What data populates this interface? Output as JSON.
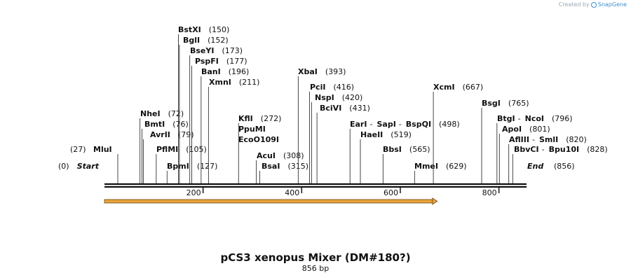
{
  "credit": {
    "prefix": "Created by",
    "brand": "SnapGene",
    "logo_icon": "snapgene-logo-icon"
  },
  "map": {
    "title": "pCS3 xenopus Mixer (DM#180?)",
    "length_label": "856 bp",
    "length": 856,
    "start_label": "Start",
    "start_position": "(0)",
    "end_label": "End",
    "end_position": "(856)",
    "axis_ticks": [
      200,
      400,
      600,
      800
    ],
    "axis_tick_labels": [
      "200",
      "400",
      "600",
      "800"
    ],
    "feature_arrow": {
      "start": 0,
      "end": 675,
      "color": "#e8a33a"
    },
    "site_groups": [
      {
        "sites": [
          {
            "name": "MluI",
            "pos": "(27)"
          }
        ],
        "bp": 27,
        "label_left": true
      },
      {
        "sites": [
          {
            "name": "NheI",
            "pos": "(72)"
          }
        ],
        "bp": 72
      },
      {
        "sites": [
          {
            "name": "BmtI",
            "pos": "(76)"
          }
        ],
        "bp": 76
      },
      {
        "sites": [
          {
            "name": "AvrII",
            "pos": "(79)"
          }
        ],
        "bp": 79
      },
      {
        "sites": [
          {
            "name": "PflMI",
            "pos": "(105)"
          }
        ],
        "bp": 105
      },
      {
        "sites": [
          {
            "name": "BpmI",
            "pos": "(127)"
          }
        ],
        "bp": 127
      },
      {
        "sites": [
          {
            "name": "BstXI",
            "pos": "(150)"
          }
        ],
        "bp": 150
      },
      {
        "sites": [
          {
            "name": "BglI",
            "pos": "(152)"
          }
        ],
        "bp": 152
      },
      {
        "sites": [
          {
            "name": "BseYI",
            "pos": "(173)"
          }
        ],
        "bp": 173
      },
      {
        "sites": [
          {
            "name": "PspFI",
            "pos": "(177)"
          }
        ],
        "bp": 177
      },
      {
        "sites": [
          {
            "name": "BanI",
            "pos": "(196)"
          }
        ],
        "bp": 196
      },
      {
        "sites": [
          {
            "name": "XmnI",
            "pos": "(211)"
          }
        ],
        "bp": 211
      },
      {
        "sites": [
          {
            "name": "KflI",
            "pos": "(272)"
          },
          {
            "name": "PpuMI",
            "pos": ""
          },
          {
            "name": "EcoO109I",
            "pos": ""
          }
        ],
        "bp": 272,
        "stacked": true
      },
      {
        "sites": [
          {
            "name": "AcuI",
            "pos": "(308)"
          }
        ],
        "bp": 308
      },
      {
        "sites": [
          {
            "name": "BsaI",
            "pos": "(315)"
          }
        ],
        "bp": 315
      },
      {
        "sites": [
          {
            "name": "XbaI",
            "pos": "(393)"
          }
        ],
        "bp": 393
      },
      {
        "sites": [
          {
            "name": "PciI",
            "pos": "(416)"
          }
        ],
        "bp": 416
      },
      {
        "sites": [
          {
            "name": "NspI",
            "pos": "(420)"
          }
        ],
        "bp": 420
      },
      {
        "sites": [
          {
            "name": "BciVI",
            "pos": "(431)"
          }
        ],
        "bp": 431
      },
      {
        "sites": [
          {
            "name": "EarI",
            "pos": ""
          },
          {
            "name": "SapI",
            "pos": ""
          },
          {
            "name": "BspQI",
            "pos": "(498)"
          }
        ],
        "bp": 498,
        "inline": true
      },
      {
        "sites": [
          {
            "name": "HaeII",
            "pos": "(519)"
          }
        ],
        "bp": 519
      },
      {
        "sites": [
          {
            "name": "BbsI",
            "pos": "(565)"
          }
        ],
        "bp": 565
      },
      {
        "sites": [
          {
            "name": "MmeI",
            "pos": "(629)"
          }
        ],
        "bp": 629
      },
      {
        "sites": [
          {
            "name": "XcmI",
            "pos": "(667)"
          }
        ],
        "bp": 667
      },
      {
        "sites": [
          {
            "name": "BsgI",
            "pos": "(765)"
          }
        ],
        "bp": 765
      },
      {
        "sites": [
          {
            "name": "BtgI",
            "pos": ""
          },
          {
            "name": "NcoI",
            "pos": "(796)"
          }
        ],
        "bp": 796,
        "inline": true
      },
      {
        "sites": [
          {
            "name": "ApoI",
            "pos": "(801)"
          }
        ],
        "bp": 801
      },
      {
        "sites": [
          {
            "name": "AflIII",
            "pos": ""
          },
          {
            "name": "SmlI",
            "pos": "(820)"
          }
        ],
        "bp": 820,
        "inline": true
      },
      {
        "sites": [
          {
            "name": "BbvCI",
            "pos": ""
          },
          {
            "name": "Bpu10I",
            "pos": "(828)"
          }
        ],
        "bp": 828,
        "inline": true
      }
    ]
  }
}
